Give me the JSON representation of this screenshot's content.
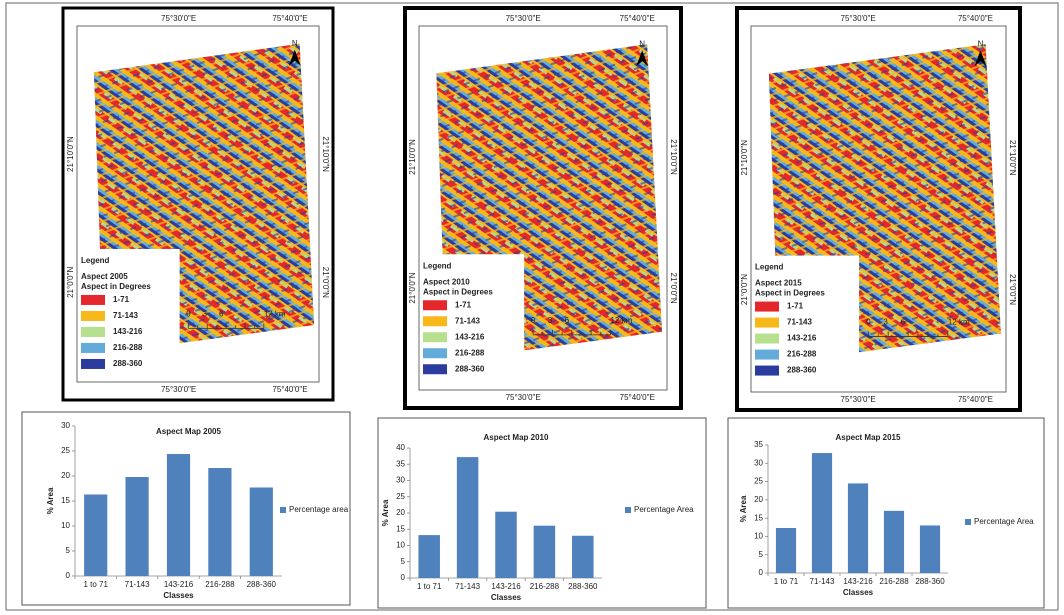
{
  "maps": [
    {
      "top_labels": [
        "75°30'0\"E",
        "75°40'0\"E"
      ],
      "bottom_labels": [
        "75°30'0\"E",
        "75°40'0\"E"
      ],
      "left_labels": [
        "21°10'0\"N",
        "21°0'0\"N"
      ],
      "right_labels": [
        "21°10'0\"N",
        "21°0'0\"N"
      ],
      "north": "N",
      "legend_title": "Legend",
      "layer": "Aspect 2005",
      "field": "Aspect in Degrees",
      "classes": [
        {
          "label": "1-71",
          "color": "#e4272b"
        },
        {
          "label": "71-143",
          "color": "#f8b81a"
        },
        {
          "label": "143-216",
          "color": "#b6e08e"
        },
        {
          "label": "216-288",
          "color": "#63acd9"
        },
        {
          "label": "288-360",
          "color": "#2c3c9e"
        }
      ],
      "scale_labels": [
        "0",
        "3",
        "6",
        "12 km"
      ]
    },
    {
      "top_labels": [
        "75°30'0\"E",
        "75°40'0\"E"
      ],
      "bottom_labels": [
        "75°30'0\"E",
        "75°40'0\"E"
      ],
      "left_labels": [
        "21°10'0\"N",
        "21°0'0\"N"
      ],
      "right_labels": [
        "21°10'0\"N",
        "21°0'0\"N"
      ],
      "north": "N",
      "legend_title": "Legend",
      "layer": "Aspect 2010",
      "field": "Aspect in Degrees",
      "classes": [
        {
          "label": "1-71",
          "color": "#e4272b"
        },
        {
          "label": "71-143",
          "color": "#f8b81a"
        },
        {
          "label": "143-216",
          "color": "#b6e08e"
        },
        {
          "label": "216-288",
          "color": "#63acd9"
        },
        {
          "label": "288-360",
          "color": "#2c3c9e"
        }
      ],
      "scale_labels": [
        "0",
        "3",
        "6",
        "12 km"
      ]
    },
    {
      "top_labels": [
        "75°30'0\"E",
        "75°40'0\"E"
      ],
      "bottom_labels": [
        "75°30'0\"E",
        "75°40'0\"E"
      ],
      "left_labels": [
        "21°10'0\"N",
        "21°0'0\"N"
      ],
      "right_labels": [
        "21°10'0\"N",
        "21°0'0\"N"
      ],
      "north": "N",
      "legend_title": "Legend",
      "layer": "Aspect 2015",
      "field": "Aspect in Degrees",
      "classes": [
        {
          "label": "1-71",
          "color": "#e4272b"
        },
        {
          "label": "71-143",
          "color": "#f8b81a"
        },
        {
          "label": "143-216",
          "color": "#b6e08e"
        },
        {
          "label": "216-288",
          "color": "#63acd9"
        },
        {
          "label": "288-360",
          "color": "#2c3c9e"
        }
      ],
      "scale_labels": [
        "0",
        "3",
        "6",
        "12 km"
      ]
    }
  ],
  "chart_data": [
    {
      "type": "bar",
      "title": "Aspect Map 2005",
      "ylabel": "% Area",
      "xlabel": "Classes",
      "categories": [
        "1 to 71",
        "71-143",
        "143-216",
        "216-288",
        "288-360"
      ],
      "series": [
        {
          "name": "Percentage area",
          "color": "#4f81bd",
          "values": [
            16.3,
            19.8,
            24.4,
            21.6,
            17.7
          ]
        }
      ],
      "ylim": [
        0,
        30
      ],
      "yticks": [
        0,
        5,
        10,
        15,
        20,
        25,
        30
      ]
    },
    {
      "type": "bar",
      "title": "Aspect Map 2010",
      "ylabel": "% Area",
      "xlabel": "Classes",
      "categories": [
        "1 to 71",
        "71-143",
        "143-216",
        "216-288",
        "288-360"
      ],
      "series": [
        {
          "name": "Percentage Area",
          "color": "#4f81bd",
          "values": [
            13.2,
            37.2,
            20.4,
            16.1,
            13.0
          ]
        }
      ],
      "ylim": [
        0,
        40
      ],
      "yticks": [
        0,
        5,
        10,
        15,
        20,
        25,
        30,
        35,
        40
      ]
    },
    {
      "type": "bar",
      "title": "Aspect Map 2015",
      "ylabel": "% Area",
      "xlabel": "Classes",
      "categories": [
        "1 to 71",
        "71-143",
        "143-216",
        "216-288",
        "288-360"
      ],
      "series": [
        {
          "name": "Percentage Area",
          "color": "#4f81bd",
          "values": [
            12.3,
            32.8,
            24.5,
            17.0,
            13.0
          ]
        }
      ],
      "ylim": [
        0,
        35
      ],
      "yticks": [
        0,
        5,
        10,
        15,
        20,
        25,
        30,
        35
      ]
    }
  ]
}
